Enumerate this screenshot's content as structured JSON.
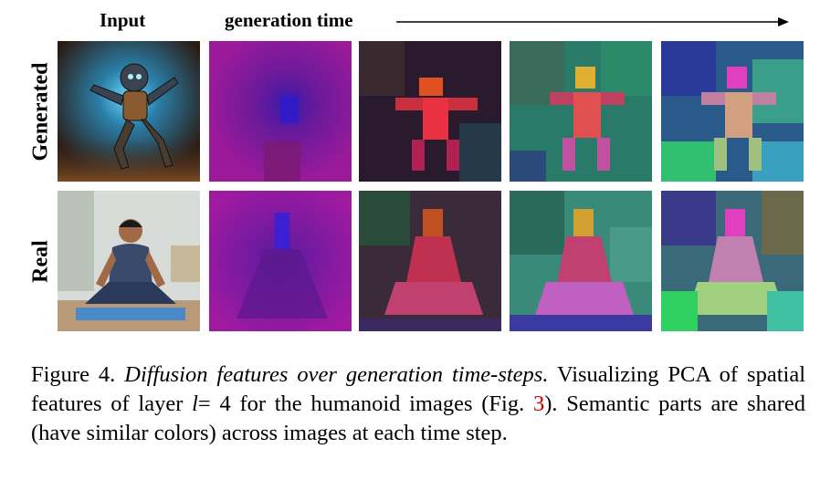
{
  "headers": {
    "input": "Input",
    "generation_time": "generation time"
  },
  "rows": [
    {
      "label": "Generated"
    },
    {
      "label": "Real"
    }
  ],
  "caption": {
    "figure_label": "Figure 4.",
    "title_italic": "Diffusion features over generation time-steps.",
    "body_part1": "Visualizing PCA of spatial features of layer",
    "var": "l",
    "eq": "= 4",
    "body_part2": "for the humanoid images (Fig.",
    "ref": "3",
    "body_part3": "). Semantic parts are shared (have similar colors) across images at each time step."
  },
  "colors": {
    "ref_link": "#cc0000",
    "text": "#000000"
  }
}
